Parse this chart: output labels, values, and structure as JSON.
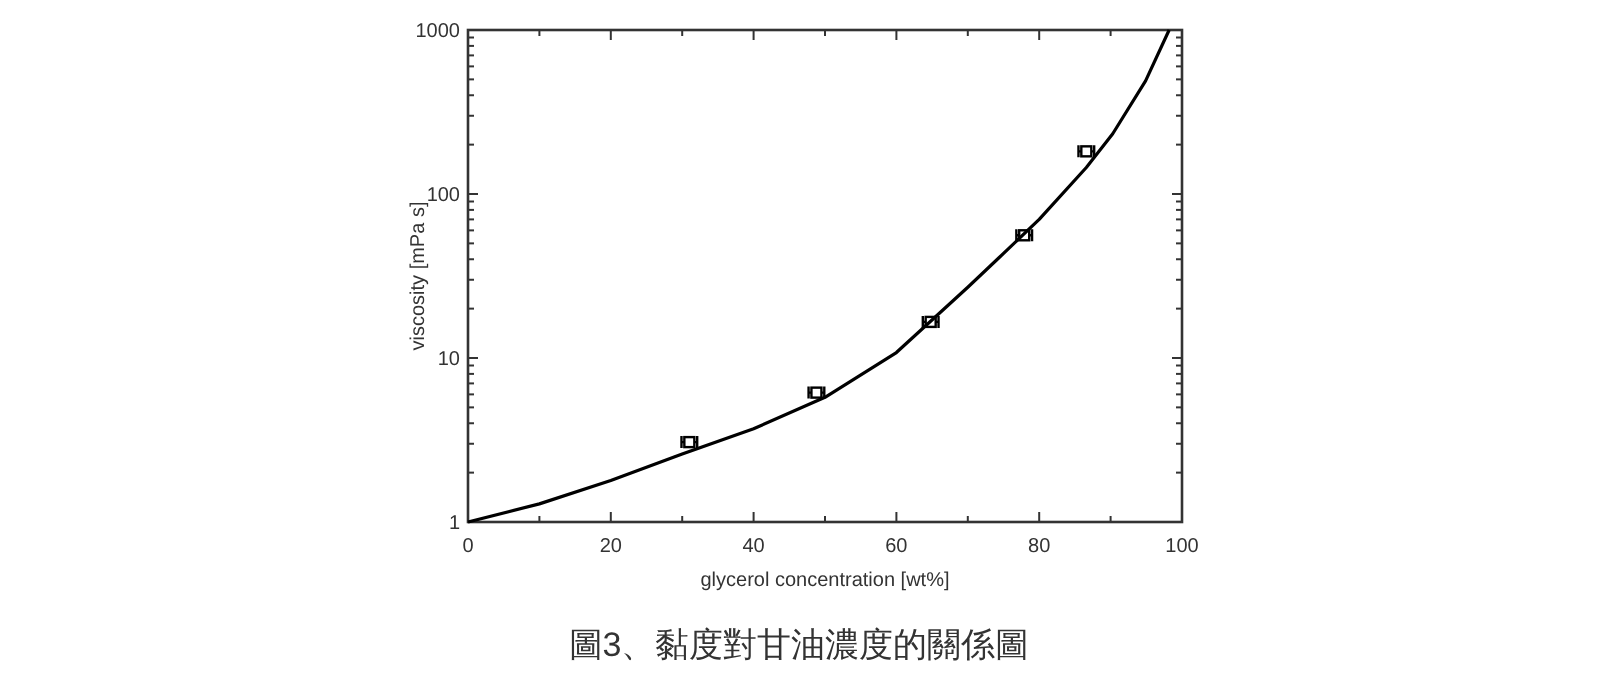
{
  "chart_data": {
    "type": "line",
    "xlabel": "glycerol concentration [wt%]",
    "ylabel": "viscosity [mPa s]",
    "log": "y",
    "grid": false,
    "xlim": [
      0,
      100
    ],
    "xticks": [
      0,
      20,
      40,
      60,
      80,
      100
    ],
    "ylim": [
      1,
      1000
    ],
    "yticks": [
      1,
      10,
      100,
      1000
    ],
    "series": [
      {
        "type": "line",
        "color": "#000000",
        "marker": "none",
        "line_style": "solid",
        "x": [
          0,
          10,
          20,
          30,
          40,
          50,
          60,
          70,
          74.4,
          80,
          86.6,
          90.3,
          94.9,
          98.2
        ],
        "values": [
          1,
          1.29,
          1.79,
          2.6,
          3.7,
          5.76,
          10.8,
          27,
          41,
          70,
          145,
          233,
          490,
          1000
        ]
      },
      {
        "type": "scatter",
        "color": "#000000",
        "marker": "square",
        "x": [
          31,
          48.8,
          64.8,
          77.9,
          86.6
        ],
        "values": [
          3.07,
          6.15,
          16.6,
          56,
          182
        ],
        "xerrors": [
          1.1,
          1.1,
          1.1,
          1.1,
          1.1
        ]
      }
    ],
    "annotations": [
      "圖3、黏度對甘油濃度的關係圖"
    ]
  }
}
